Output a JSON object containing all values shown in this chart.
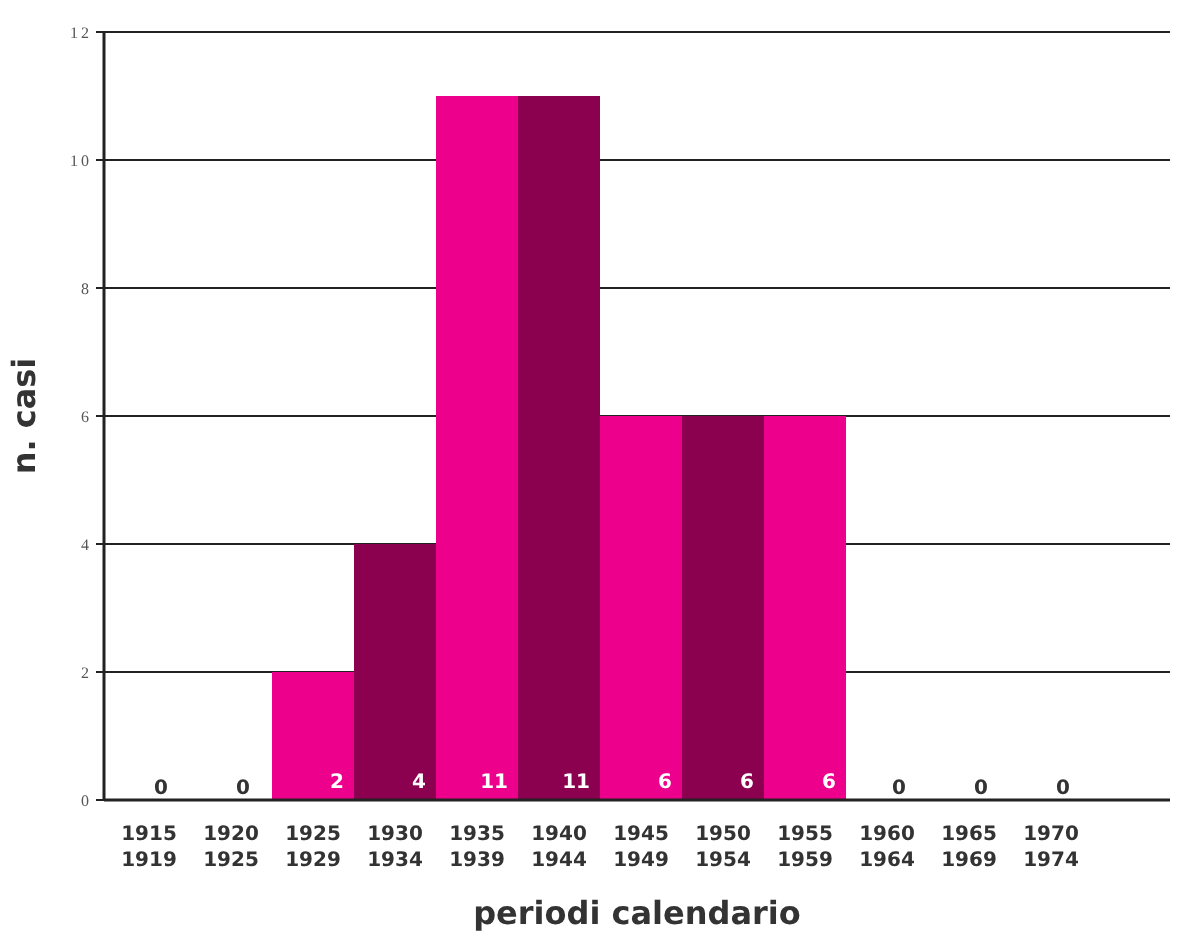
{
  "chart_data": {
    "type": "bar",
    "xlabel": "periodi calendario",
    "ylabel": "n. casi",
    "categories": [
      "1915\n1919",
      "1920\n1925",
      "1925\n1929",
      "1930\n1934",
      "1935\n1939",
      "1940\n1944",
      "1945\n1949",
      "1950\n1954",
      "1955\n1959",
      "1960\n1964",
      "1965\n1969",
      "1970\n1974"
    ],
    "values": [
      0,
      0,
      2,
      4,
      11,
      11,
      6,
      6,
      6,
      0,
      0,
      0
    ],
    "colors": [
      "#ec008c",
      "#8b004f",
      "#ec008c",
      "#8b004f",
      "#ec008c",
      "#8b004f",
      "#ec008c",
      "#8b004f",
      "#ec008c",
      "#8b004f",
      "#ec008c",
      "#8b004f"
    ],
    "ylim": [
      0,
      12
    ],
    "yticks": [
      0,
      2,
      4,
      6,
      8,
      10,
      12
    ],
    "grid": "y",
    "data_labels": true
  }
}
